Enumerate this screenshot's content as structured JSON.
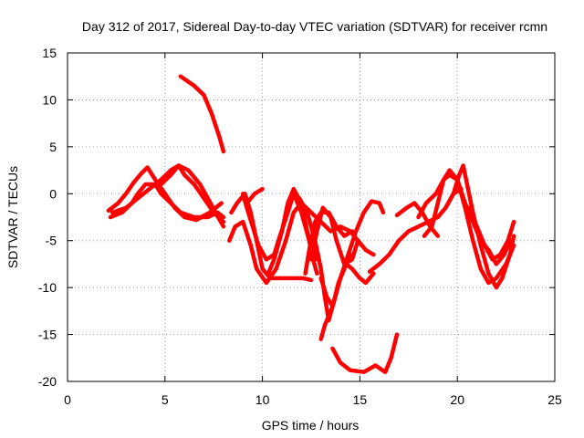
{
  "chart_data": {
    "type": "scatter",
    "title": "Day 312 of 2017, Sidereal Day-to-day VTEC variation (SDTVAR) for receiver rcmn",
    "xlabel": "GPS time / hours",
    "ylabel": "SDTVAR / TECUs",
    "xlim": [
      0,
      25
    ],
    "ylim": [
      -20,
      15
    ],
    "xticks": [
      "0",
      "5",
      "10",
      "15",
      "20",
      "25"
    ],
    "yticks": [
      "15",
      "10",
      "5",
      "0",
      "-5",
      "-10",
      "-15",
      "-20"
    ],
    "grid": true,
    "marker": "plus",
    "color": "#ff0000",
    "series": [
      {
        "points": [
          [
            5.8,
            12.5
          ],
          [
            6.5,
            11.5
          ],
          [
            7.0,
            10.5
          ],
          [
            7.4,
            8.5
          ],
          [
            7.8,
            6.0
          ],
          [
            8.0,
            4.5
          ]
        ]
      },
      {
        "points": [
          [
            2.2,
            -2.5
          ],
          [
            2.8,
            -2.0
          ],
          [
            3.3,
            -1.0
          ],
          [
            3.6,
            0.0
          ],
          [
            4.0,
            1.0
          ],
          [
            4.5,
            1.0
          ],
          [
            4.8,
            0.0
          ],
          [
            5.3,
            -1.0
          ],
          [
            5.8,
            -2.0
          ],
          [
            6.5,
            -2.5
          ],
          [
            7.2,
            -2.5
          ],
          [
            7.7,
            -2.0
          ],
          [
            8.0,
            -2.5
          ]
        ]
      },
      {
        "points": [
          [
            2.3,
            -2.0
          ],
          [
            3.0,
            -1.5
          ],
          [
            3.6,
            -0.5
          ],
          [
            4.2,
            0.5
          ],
          [
            4.8,
            1.5
          ],
          [
            5.3,
            2.5
          ],
          [
            5.7,
            3.0
          ],
          [
            6.0,
            2.0
          ],
          [
            6.5,
            1.0
          ],
          [
            7.0,
            -0.5
          ],
          [
            7.5,
            -2.0
          ],
          [
            8.0,
            -3.0
          ]
        ]
      },
      {
        "points": [
          [
            2.1,
            -1.8
          ],
          [
            2.6,
            -1.0
          ],
          [
            3.0,
            0.0
          ],
          [
            3.4,
            1.2
          ],
          [
            3.8,
            2.2
          ],
          [
            4.1,
            2.8
          ],
          [
            4.5,
            1.5
          ],
          [
            5.0,
            0.0
          ],
          [
            5.5,
            -1.5
          ],
          [
            6.0,
            -2.5
          ],
          [
            6.6,
            -2.8
          ],
          [
            7.3,
            -2.0
          ],
          [
            7.9,
            -1.0
          ]
        ]
      },
      {
        "points": [
          [
            4.8,
            1.0
          ],
          [
            5.3,
            2.0
          ],
          [
            5.7,
            3.0
          ],
          [
            6.2,
            2.5
          ],
          [
            6.8,
            1.0
          ],
          [
            7.2,
            -0.5
          ],
          [
            7.6,
            -2.0
          ],
          [
            8.0,
            -3.5
          ]
        ]
      },
      {
        "points": [
          [
            8.3,
            -5.0
          ],
          [
            8.6,
            -3.5
          ],
          [
            9.0,
            -3.0
          ],
          [
            9.4,
            -5.5
          ],
          [
            9.7,
            -8.0
          ],
          [
            10.2,
            -9.5
          ],
          [
            10.7,
            -8.0
          ],
          [
            11.2,
            -5.0
          ],
          [
            11.6,
            -2.0
          ],
          [
            12.0,
            -1.0
          ],
          [
            12.3,
            -4.0
          ],
          [
            12.6,
            -7.0
          ],
          [
            12.8,
            -8.5
          ]
        ]
      },
      {
        "points": [
          [
            8.4,
            -2.0
          ],
          [
            8.7,
            -1.0
          ],
          [
            9.1,
            0.0
          ],
          [
            9.4,
            -2.0
          ],
          [
            9.7,
            -5.0
          ],
          [
            10.0,
            -8.0
          ],
          [
            10.4,
            -9.0
          ],
          [
            11.0,
            -9.0
          ],
          [
            11.6,
            -9.0
          ],
          [
            12.1,
            -9.0
          ],
          [
            12.5,
            -9.2
          ]
        ]
      },
      {
        "points": [
          [
            9.0,
            0.0
          ],
          [
            9.2,
            -1.5
          ],
          [
            9.5,
            -3.5
          ],
          [
            9.8,
            -5.5
          ],
          [
            10.2,
            -7.0
          ],
          [
            10.6,
            -6.5
          ],
          [
            10.9,
            -4.5
          ],
          [
            11.3,
            -2.0
          ],
          [
            11.6,
            0.0
          ],
          [
            12.0,
            -2.0
          ],
          [
            12.4,
            -5.0
          ],
          [
            12.8,
            -7.0
          ]
        ]
      },
      {
        "points": [
          [
            9.2,
            -1.0
          ],
          [
            9.6,
            0.0
          ],
          [
            10.0,
            0.5
          ]
        ]
      },
      {
        "points": [
          [
            10.3,
            -8.5
          ],
          [
            10.6,
            -7.0
          ],
          [
            11.0,
            -4.0
          ],
          [
            11.3,
            -1.0
          ],
          [
            11.6,
            0.5
          ],
          [
            12.0,
            -1.0
          ],
          [
            12.5,
            -2.0
          ],
          [
            13.0,
            -3.0
          ],
          [
            13.5,
            -4.0
          ],
          [
            14.0,
            -3.5
          ],
          [
            14.5,
            -4.0
          ],
          [
            14.9,
            -5.0
          ],
          [
            15.3,
            -6.0
          ],
          [
            15.7,
            -6.5
          ]
        ]
      },
      {
        "points": [
          [
            12.2,
            -8.5
          ],
          [
            12.4,
            -6.0
          ],
          [
            12.7,
            -3.0
          ],
          [
            13.0,
            -2.0
          ],
          [
            13.4,
            -2.0
          ],
          [
            13.8,
            -3.5
          ],
          [
            14.2,
            -4.5
          ],
          [
            14.6,
            -4.0
          ]
        ]
      },
      {
        "points": [
          [
            12.5,
            -7.0
          ],
          [
            12.8,
            -4.0
          ],
          [
            13.1,
            -1.5
          ],
          [
            13.5,
            -2.5
          ],
          [
            13.8,
            -5.0
          ],
          [
            14.2,
            -7.5
          ],
          [
            14.6,
            -7.0
          ],
          [
            14.9,
            -5.0
          ]
        ]
      },
      {
        "points": [
          [
            11.9,
            -0.5
          ],
          [
            12.3,
            -2.0
          ],
          [
            12.7,
            -5.0
          ],
          [
            13.0,
            -8.0
          ],
          [
            13.2,
            -11.0
          ],
          [
            13.4,
            -13.5
          ],
          [
            13.6,
            -12.0
          ],
          [
            13.9,
            -9.5
          ],
          [
            14.2,
            -8.0
          ],
          [
            14.5,
            -6.5
          ]
        ]
      },
      {
        "points": [
          [
            13.0,
            -9.0
          ],
          [
            13.3,
            -11.0
          ],
          [
            13.6,
            -12.0
          ],
          [
            14.0,
            -9.0
          ],
          [
            14.4,
            -6.5
          ],
          [
            14.8,
            -4.0
          ],
          [
            15.2,
            -2.0
          ],
          [
            15.6,
            -0.8
          ],
          [
            16.0,
            -1.0
          ],
          [
            16.2,
            -2.0
          ]
        ]
      },
      {
        "points": [
          [
            13.0,
            -15.5
          ],
          [
            13.2,
            -14.0
          ],
          [
            13.6,
            -12.0
          ],
          [
            14.0,
            -9.0
          ],
          [
            14.3,
            -7.5
          ],
          [
            14.6,
            -8.0
          ],
          [
            15.0,
            -9.0
          ],
          [
            15.3,
            -9.5
          ],
          [
            15.7,
            -8.5
          ]
        ]
      },
      {
        "points": [
          [
            13.6,
            -16.5
          ],
          [
            14.0,
            -18.0
          ],
          [
            14.5,
            -18.8
          ],
          [
            15.2,
            -19.0
          ],
          [
            15.8,
            -18.3
          ],
          [
            16.3,
            -19.0
          ],
          [
            16.6,
            -17.5
          ],
          [
            16.9,
            -15.0
          ]
        ]
      },
      {
        "points": [
          [
            15.5,
            -8.3
          ],
          [
            16.0,
            -7.5
          ],
          [
            16.5,
            -6.5
          ],
          [
            17.0,
            -5.0
          ],
          [
            17.5,
            -4.0
          ],
          [
            18.0,
            -3.5
          ],
          [
            18.5,
            -3.0
          ],
          [
            19.0,
            -2.5
          ],
          [
            19.4,
            -1.5
          ],
          [
            19.8,
            0.0
          ],
          [
            20.2,
            0.5
          ]
        ]
      },
      {
        "points": [
          [
            16.9,
            -2.3
          ],
          [
            17.4,
            -1.5
          ],
          [
            17.8,
            -1.0
          ],
          [
            18.2,
            -2.0
          ],
          [
            18.6,
            -3.5
          ],
          [
            19.0,
            -4.5
          ]
        ]
      },
      {
        "points": [
          [
            18.0,
            -2.5
          ],
          [
            18.4,
            -1.0
          ],
          [
            18.9,
            0.0
          ],
          [
            19.3,
            1.5
          ],
          [
            19.6,
            2.5
          ],
          [
            20.0,
            1.5
          ],
          [
            20.4,
            -1.0
          ],
          [
            20.8,
            -3.0
          ],
          [
            21.2,
            -5.0
          ],
          [
            21.6,
            -6.0
          ],
          [
            22.0,
            -7.5
          ],
          [
            22.4,
            -6.5
          ],
          [
            22.7,
            -5.0
          ]
        ]
      },
      {
        "points": [
          [
            18.3,
            -4.5
          ],
          [
            18.7,
            -3.5
          ],
          [
            19.0,
            -1.0
          ],
          [
            19.3,
            1.5
          ],
          [
            19.6,
            2.0
          ],
          [
            20.0,
            1.5
          ],
          [
            20.4,
            -1.5
          ],
          [
            20.8,
            -5.0
          ],
          [
            21.2,
            -8.0
          ],
          [
            21.6,
            -9.5
          ],
          [
            22.0,
            -9.0
          ],
          [
            22.5,
            -7.5
          ],
          [
            22.9,
            -5.5
          ]
        ]
      },
      {
        "points": [
          [
            19.4,
            -1.5
          ],
          [
            19.8,
            0.0
          ],
          [
            20.1,
            2.0
          ],
          [
            20.3,
            3.0
          ],
          [
            20.5,
            1.0
          ],
          [
            20.8,
            -2.0
          ],
          [
            21.2,
            -5.5
          ],
          [
            21.6,
            -8.5
          ],
          [
            22.0,
            -10.0
          ],
          [
            22.3,
            -9.0
          ],
          [
            22.7,
            -6.5
          ],
          [
            22.9,
            -4.5
          ]
        ]
      },
      {
        "points": [
          [
            20.6,
            -1.5
          ],
          [
            21.0,
            -3.5
          ],
          [
            21.4,
            -5.5
          ],
          [
            21.8,
            -7.0
          ],
          [
            22.2,
            -6.5
          ],
          [
            22.6,
            -5.0
          ],
          [
            22.9,
            -3.0
          ]
        ]
      }
    ]
  }
}
